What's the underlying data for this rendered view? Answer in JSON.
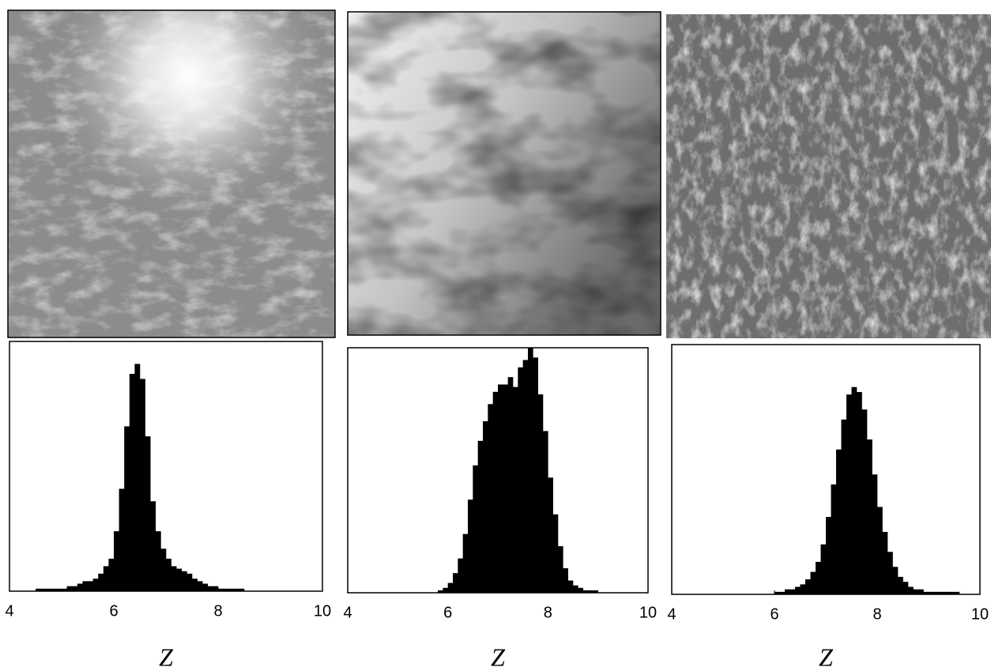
{
  "chart_data": [
    {
      "type": "histogram",
      "color": "#000000",
      "xlim": [
        4,
        10
      ],
      "xticks": [
        4,
        6,
        8,
        10
      ],
      "ylim": [
        0,
        100
      ],
      "xlabel": "Z",
      "bins": [
        4.5,
        4.6,
        4.7,
        4.8,
        4.9,
        5.0,
        5.1,
        5.2,
        5.3,
        5.4,
        5.5,
        5.6,
        5.7,
        5.8,
        5.9,
        6.0,
        6.1,
        6.2,
        6.3,
        6.4,
        6.5,
        6.6,
        6.7,
        6.8,
        6.9,
        7.0,
        7.1,
        7.2,
        7.3,
        7.4,
        7.5,
        7.6,
        7.7,
        7.8,
        7.9,
        8.0,
        8.1,
        8.2,
        8.3,
        8.4,
        8.5
      ],
      "values": [
        1,
        1,
        1,
        1,
        1,
        1,
        2,
        2,
        3,
        4,
        4,
        5,
        7,
        10,
        13,
        24,
        41,
        66,
        87,
        91,
        85,
        62,
        36,
        24,
        17,
        13,
        10,
        9,
        8,
        7,
        5,
        4,
        3,
        2,
        2,
        1,
        1,
        1,
        1,
        1
      ]
    },
    {
      "type": "histogram",
      "color": "#000000",
      "xlim": [
        4,
        10
      ],
      "xticks": [
        4,
        6,
        8,
        10
      ],
      "ylim": [
        0,
        100
      ],
      "xlabel": "Z",
      "bins": [
        5.8,
        5.9,
        6.0,
        6.1,
        6.2,
        6.3,
        6.4,
        6.5,
        6.6,
        6.7,
        6.8,
        6.9,
        7.0,
        7.1,
        7.2,
        7.3,
        7.4,
        7.5,
        7.6,
        7.7,
        7.8,
        7.9,
        8.0,
        8.1,
        8.2,
        8.3,
        8.4,
        8.5,
        8.6,
        8.7,
        8.8,
        8.9,
        9.0
      ],
      "values": [
        1,
        2,
        4,
        8,
        14,
        24,
        38,
        52,
        62,
        70,
        77,
        82,
        85,
        85,
        88,
        84,
        92,
        95,
        100,
        96,
        81,
        66,
        47,
        32,
        19,
        10,
        5,
        3,
        2,
        1,
        1,
        1
      ]
    },
    {
      "type": "histogram",
      "color": "#000000",
      "xlim": [
        4,
        10
      ],
      "xticks": [
        4,
        6,
        8,
        10
      ],
      "ylim": [
        0,
        100
      ],
      "xlabel": "Z",
      "bins": [
        6.0,
        6.1,
        6.2,
        6.3,
        6.4,
        6.5,
        6.6,
        6.7,
        6.8,
        6.9,
        7.0,
        7.1,
        7.2,
        7.3,
        7.4,
        7.5,
        7.6,
        7.7,
        7.8,
        7.9,
        8.0,
        8.1,
        8.2,
        8.3,
        8.4,
        8.5,
        8.6,
        8.7,
        8.8,
        8.9,
        9.0,
        9.1,
        9.2,
        9.3,
        9.4,
        9.5,
        9.6
      ],
      "values": [
        1,
        1,
        2,
        2,
        3,
        4,
        6,
        9,
        13,
        20,
        31,
        44,
        58,
        70,
        80,
        83,
        81,
        74,
        62,
        48,
        35,
        25,
        17,
        11,
        7,
        5,
        3,
        2,
        2,
        1,
        1,
        1,
        1,
        1,
        1,
        1
      ]
    }
  ]
}
